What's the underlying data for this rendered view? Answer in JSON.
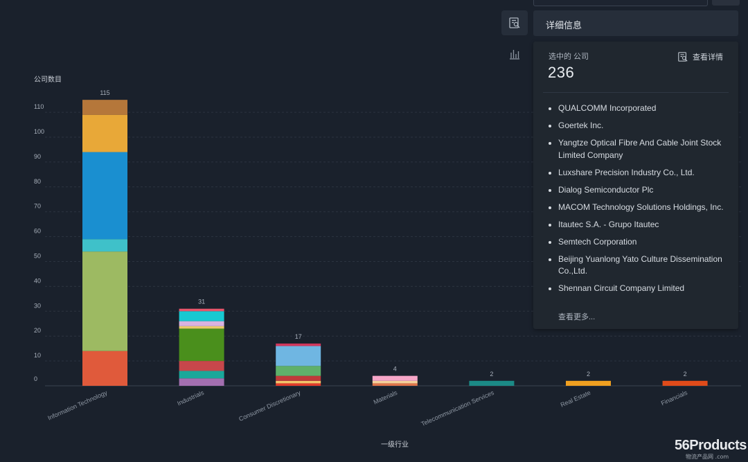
{
  "chart_data": {
    "type": "bar",
    "stacked": true,
    "ylabel": "公司数目",
    "xlabel": "一级行业",
    "ylim": [
      0,
      115
    ],
    "yticks": [
      0,
      10,
      20,
      30,
      40,
      50,
      60,
      70,
      80,
      90,
      100,
      110
    ],
    "grid": true,
    "categories": [
      "Information Technology",
      "Industrials",
      "Consumer Discretionary",
      "Materials",
      "Telecommunication Services",
      "Real Estate",
      "Financials"
    ],
    "totals": [
      115,
      31,
      17,
      4,
      2,
      2,
      2
    ],
    "stacks": [
      [
        {
          "value": 14,
          "color": "#e05a3b"
        },
        {
          "value": 40,
          "color": "#9dba62"
        },
        {
          "value": 5,
          "color": "#3fc1c9"
        },
        {
          "value": 35,
          "color": "#1a8fd0"
        },
        {
          "value": 15,
          "color": "#e8a838"
        },
        {
          "value": 6,
          "color": "#b5773a"
        }
      ],
      [
        {
          "value": 3,
          "color": "#a36fb0"
        },
        {
          "value": 3,
          "color": "#1aa89a"
        },
        {
          "value": 4,
          "color": "#c7474b"
        },
        {
          "value": 13,
          "color": "#4a8f1c"
        },
        {
          "value": 1,
          "color": "#e8c96a"
        },
        {
          "value": 2,
          "color": "#d9b3e0"
        },
        {
          "value": 4,
          "color": "#18c9d1"
        },
        {
          "value": 1,
          "color": "#e8556b"
        }
      ],
      [
        {
          "value": 1,
          "color": "#e23b2a"
        },
        {
          "value": 1,
          "color": "#f2c46a"
        },
        {
          "value": 2,
          "color": "#c03a3a"
        },
        {
          "value": 4,
          "color": "#5fb06a"
        },
        {
          "value": 8,
          "color": "#6fb6e2"
        },
        {
          "value": 1,
          "color": "#d1375c"
        }
      ],
      [
        {
          "value": 1,
          "color": "#e0754a"
        },
        {
          "value": 1,
          "color": "#f5d19a"
        },
        {
          "value": 2,
          "color": "#f6a6c8"
        }
      ],
      [
        {
          "value": 2,
          "color": "#1b8a86"
        }
      ],
      [
        {
          "value": 2,
          "color": "#f0a020"
        }
      ],
      [
        {
          "value": 2,
          "color": "#e04b1a"
        }
      ]
    ]
  },
  "detail_panel": {
    "title": "详细信息",
    "selected_label": "选中的 公司",
    "selected_count": "236",
    "view_details": "查看详情",
    "companies": [
      "QUALCOMM Incorporated",
      "Goertek Inc.",
      "Yangtze Optical Fibre And Cable Joint Stock Limited Company",
      "Luxshare Precision Industry Co., Ltd.",
      "Dialog Semiconductor Plc",
      "MACOM Technology Solutions Holdings, Inc.",
      "Itautec S.A. - Grupo Itautec",
      "Semtech Corporation",
      "Beijing Yuanlong Yato Culture Dissemination Co.,Ltd.",
      "Shennan Circuit Company Limited"
    ],
    "see_more": "查看更多..."
  },
  "side_icons": [
    "detail-icon",
    "bar-chart-icon"
  ],
  "watermark": {
    "main": "56Products",
    "sub": "物流产品网 .com"
  }
}
